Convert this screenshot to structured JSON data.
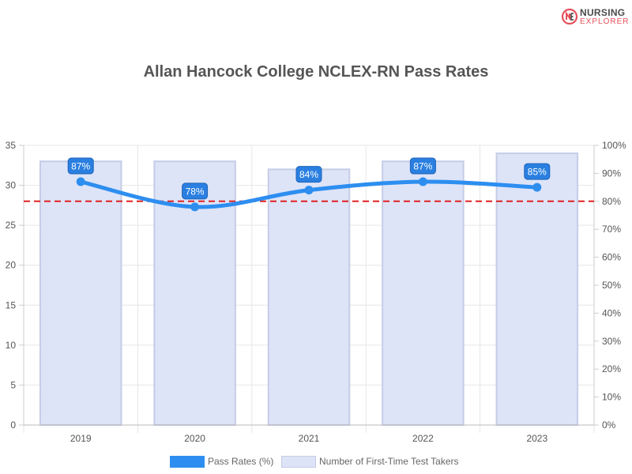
{
  "logo": {
    "line1": "NURSING",
    "line2": "EXPLORER",
    "icon": "nursing-explorer-logo-icon",
    "accent": "#e8505b"
  },
  "chart_data": {
    "type": "bar",
    "title": "Allan Hancock College NCLEX-RN Pass Rates",
    "categories": [
      "2019",
      "2020",
      "2021",
      "2022",
      "2023"
    ],
    "series": [
      {
        "name": "Pass Rates (%)",
        "type": "line",
        "axis": "right",
        "values": [
          87,
          78,
          84,
          87,
          85
        ],
        "labels": [
          "87%",
          "78%",
          "84%",
          "87%",
          "85%"
        ],
        "color": "#2d8ef0"
      },
      {
        "name": "Number of First-Time Test Takers",
        "type": "bar",
        "axis": "left",
        "values": [
          33,
          33,
          32,
          33,
          34
        ],
        "color": "#dde4f8",
        "border_color": "#c5cde6"
      }
    ],
    "y_left": {
      "range": [
        0,
        35
      ],
      "ticks": [
        "0",
        "5",
        "10",
        "15",
        "20",
        "25",
        "30",
        "35"
      ]
    },
    "y_right": {
      "range": [
        0,
        100
      ],
      "ticks": [
        "0%",
        "10%",
        "20%",
        "30%",
        "40%",
        "50%",
        "60%",
        "70%",
        "80%",
        "90%",
        "100%"
      ]
    },
    "reference_line": {
      "value": 80,
      "axis": "right",
      "style": "dashed",
      "color": "#e02020"
    },
    "grid": true,
    "legend_position": "bottom"
  }
}
